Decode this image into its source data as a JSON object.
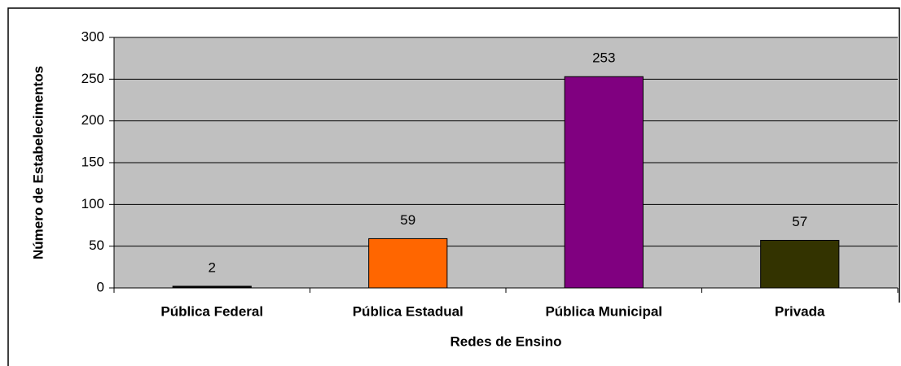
{
  "chart_data": {
    "type": "bar",
    "categories": [
      "Pública Federal",
      "Pública Estadual",
      "Pública  Municipal",
      "Privada"
    ],
    "values": [
      2,
      59,
      253,
      57
    ],
    "colors": [
      "#000000",
      "#ff6600",
      "#800080",
      "#333300"
    ],
    "xlabel": "Redes de Ensino",
    "ylabel": "Número de Estabelecimentos",
    "ylim": [
      0,
      300
    ],
    "yticks": [
      0,
      50,
      100,
      150,
      200,
      250,
      300
    ],
    "grid": true
  }
}
